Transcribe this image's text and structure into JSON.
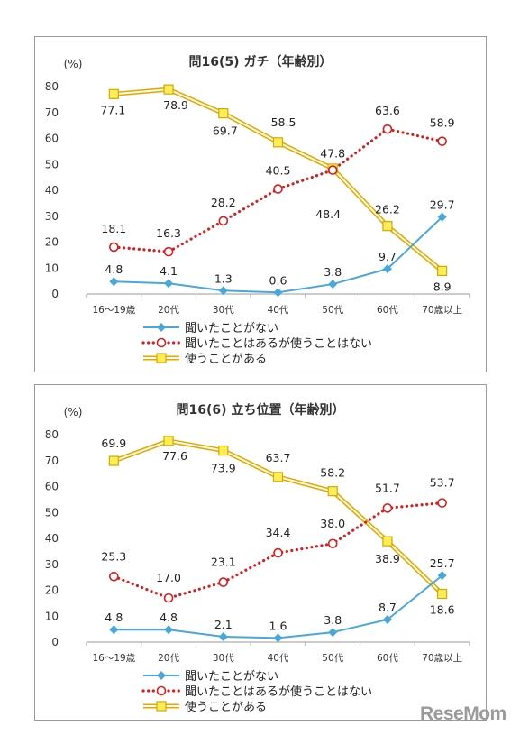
{
  "watermark": "ReseMom",
  "chart_data": [
    {
      "type": "line",
      "title": "問16(5) ガチ（年齢別）",
      "ylabel": "(%)",
      "ylim": [
        0,
        80
      ],
      "yticks": [
        0,
        10,
        20,
        30,
        40,
        50,
        60,
        70,
        80
      ],
      "categories": [
        "16～19歳",
        "20代",
        "30代",
        "40代",
        "50代",
        "60代",
        "70歳以上"
      ],
      "legend_position": "bottom",
      "series": [
        {
          "name": "聞いたことがない",
          "color": "#4aa8d8",
          "marker": "diamond",
          "line": "solid",
          "values": [
            4.8,
            4.1,
            1.3,
            0.6,
            3.8,
            9.7,
            29.7
          ]
        },
        {
          "name": "聞いたことはあるが使うことはない",
          "color": "#d42020",
          "marker": "circle",
          "line": "dotted",
          "values": [
            18.1,
            16.3,
            28.2,
            40.5,
            47.8,
            63.6,
            58.9
          ]
        },
        {
          "name": "使うことがある",
          "color": "#f4c400",
          "marker": "square",
          "line": "double",
          "values": [
            77.1,
            78.9,
            69.7,
            58.5,
            48.4,
            26.2,
            8.9
          ]
        }
      ]
    },
    {
      "type": "line",
      "title": "問16(6) 立ち位置（年齢別）",
      "ylabel": "(%)",
      "ylim": [
        0,
        80
      ],
      "yticks": [
        0,
        10,
        20,
        30,
        40,
        50,
        60,
        70,
        80
      ],
      "categories": [
        "16～19歳",
        "20代",
        "30代",
        "40代",
        "50代",
        "60代",
        "70歳以上"
      ],
      "legend_position": "bottom",
      "series": [
        {
          "name": "聞いたことがない",
          "color": "#4aa8d8",
          "marker": "diamond",
          "line": "solid",
          "values": [
            4.8,
            4.8,
            2.1,
            1.6,
            3.8,
            8.7,
            25.7
          ]
        },
        {
          "name": "聞いたことはあるが使うことはない",
          "color": "#d42020",
          "marker": "circle",
          "line": "dotted",
          "values": [
            25.3,
            17.0,
            23.1,
            34.4,
            38.0,
            51.7,
            53.7
          ]
        },
        {
          "name": "使うことがある",
          "color": "#f4c400",
          "marker": "square",
          "line": "double",
          "values": [
            69.9,
            77.6,
            73.9,
            63.7,
            58.2,
            38.9,
            18.6
          ]
        }
      ]
    }
  ]
}
